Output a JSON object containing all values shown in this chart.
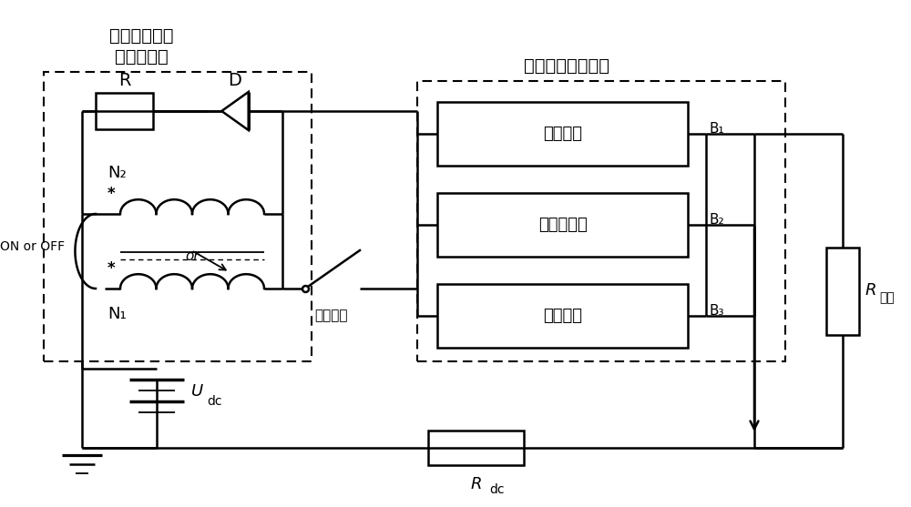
{
  "bg_color": "#ffffff",
  "line_color": "#000000",
  "labels": {
    "limiter_title1": "新型快速响应",
    "limiter_title2": "直流限流器",
    "breaker_title": "混合式直流断路器",
    "R_label": "R",
    "D_label": "D",
    "N2_label": "N₂",
    "N1_label": "N₁",
    "on_off": "ON or OFF",
    "or_label": "or",
    "isolator": "隔离开关",
    "Udc_italic": "U",
    "Udc_sub": "dc",
    "Rdc_italic": "R",
    "Rdc_sub": "dc",
    "Rload_italic": "R",
    "Rload_sub": "负载",
    "B1": "B₁",
    "B2": "B₂",
    "B3": "B₃",
    "branch1": "载流支路",
    "branch2": "主开断支路",
    "branch3": "吸能支路"
  }
}
